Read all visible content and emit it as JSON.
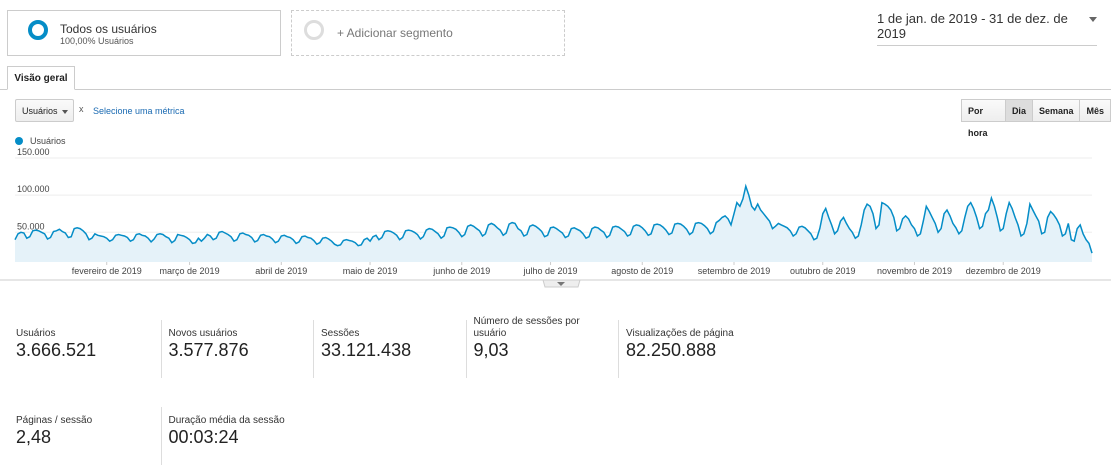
{
  "segments": {
    "active": {
      "name": "Todos os usuários",
      "detail": "100,00% Usuários"
    },
    "add": "+ Adicionar segmento"
  },
  "date_range": "1 de jan. de 2019 - 31 de dez. de 2019",
  "tab": "Visão geral",
  "controls": {
    "metric": "Usuários",
    "remove": "x",
    "secondary": "Selecione uma métrica",
    "intervals": [
      "Por hora",
      "Dia",
      "Semana",
      "Mês"
    ],
    "active_interval": 1
  },
  "chart_data": {
    "type": "line",
    "series": [
      {
        "name": "Usuários",
        "color": "#058dc7",
        "values": [
          40000,
          48000,
          50000,
          49000,
          42000,
          44000,
          52000,
          53000,
          52000,
          50000,
          48000,
          41000,
          43000,
          51000,
          52000,
          54000,
          51000,
          49000,
          43000,
          44000,
          55000,
          56000,
          55000,
          52000,
          48000,
          40000,
          42000,
          48000,
          46000,
          45000,
          44000,
          42000,
          38000,
          40000,
          46000,
          47000,
          46000,
          45000,
          43000,
          38000,
          40000,
          47000,
          48000,
          46000,
          45000,
          42000,
          37000,
          41000,
          47000,
          48000,
          47000,
          44000,
          42000,
          36000,
          39000,
          47000,
          46000,
          45000,
          43000,
          40000,
          35000,
          36000,
          42000,
          38000,
          42000,
          47000,
          45000,
          40000,
          42000,
          50000,
          51000,
          49000,
          47000,
          44000,
          38000,
          40000,
          48000,
          49000,
          47000,
          46000,
          43000,
          37000,
          39000,
          46000,
          47000,
          45000,
          44000,
          41000,
          36000,
          38000,
          45000,
          46000,
          44000,
          43000,
          40000,
          35000,
          37000,
          44000,
          45000,
          43000,
          42000,
          39000,
          34000,
          36000,
          42000,
          43000,
          41000,
          38000,
          34000,
          32000,
          33000,
          39000,
          40000,
          39000,
          38000,
          36000,
          32000,
          33000,
          40000,
          42000,
          38000,
          44000,
          46000,
          40000,
          43000,
          51000,
          52000,
          51000,
          49000,
          46000,
          40000,
          43000,
          52000,
          53000,
          52000,
          50000,
          47000,
          41000,
          44000,
          53000,
          55000,
          54000,
          51000,
          48000,
          42000,
          45000,
          56000,
          57000,
          56000,
          54000,
          50000,
          44000,
          47000,
          58000,
          60000,
          58000,
          55000,
          52000,
          45000,
          48000,
          60000,
          62000,
          60000,
          56000,
          53000,
          46000,
          49000,
          61000,
          63000,
          62000,
          55000,
          52000,
          45000,
          47000,
          58000,
          60000,
          58000,
          55000,
          51000,
          44000,
          46000,
          56000,
          57000,
          55000,
          52000,
          49000,
          43000,
          45000,
          55000,
          56000,
          54000,
          52000,
          48000,
          42000,
          44000,
          55000,
          57000,
          56000,
          53000,
          50000,
          43000,
          46000,
          57000,
          58000,
          57000,
          54000,
          51000,
          45000,
          47000,
          58000,
          60000,
          59000,
          56000,
          52000,
          46000,
          48000,
          60000,
          61000,
          60000,
          57000,
          53000,
          47000,
          49000,
          61000,
          62000,
          61000,
          58000,
          54000,
          47000,
          50000,
          62000,
          63000,
          62000,
          59000,
          55000,
          48000,
          51000,
          63000,
          66000,
          70000,
          72000,
          68000,
          60000,
          75000,
          90000,
          85000,
          95000,
          112000,
          100000,
          85000,
          80000,
          88000,
          80000,
          75000,
          70000,
          65000,
          55000,
          58000,
          62000,
          60000,
          58000,
          56000,
          52000,
          45000,
          48000,
          57000,
          58000,
          56000,
          52000,
          48000,
          40000,
          42000,
          55000,
          75000,
          82000,
          70000,
          60000,
          48000,
          52000,
          65000,
          70000,
          62000,
          55000,
          50000,
          42000,
          45000,
          60000,
          80000,
          88000,
          85000,
          75000,
          55000,
          60000,
          90000,
          88000,
          85000,
          80000,
          70000,
          52000,
          55000,
          68000,
          72000,
          68000,
          60000,
          55000,
          45000,
          48000,
          65000,
          85000,
          78000,
          70000,
          62000,
          50000,
          55000,
          75000,
          80000,
          72000,
          62000,
          56000,
          48000,
          52000,
          70000,
          85000,
          90000,
          82000,
          70000,
          55000,
          58000,
          75000,
          80000,
          96000,
          85000,
          70000,
          52000,
          55000,
          75000,
          90000,
          82000,
          70000,
          60000,
          45000,
          48000,
          62000,
          88000,
          80000,
          72000,
          65000,
          48000,
          50000,
          70000,
          78000,
          74000,
          68000,
          60000,
          45000,
          48000,
          62000,
          40000,
          38000,
          55000,
          60000,
          48000,
          40000,
          35000,
          22000
        ]
      }
    ],
    "xlim": [
      0,
      364
    ],
    "xticks": [
      {
        "value": 31,
        "label": "fevereiro de 2019"
      },
      {
        "value": 59,
        "label": "março de 2019"
      },
      {
        "value": 90,
        "label": "abril de 2019"
      },
      {
        "value": 120,
        "label": "maio de 2019"
      },
      {
        "value": 151,
        "label": "junho de 2019"
      },
      {
        "value": 181,
        "label": "julho de 2019"
      },
      {
        "value": 212,
        "label": "agosto de 2019"
      },
      {
        "value": 243,
        "label": "setembro de 2019"
      },
      {
        "value": 273,
        "label": "outubro de 2019"
      },
      {
        "value": 304,
        "label": "novembro de 2019"
      },
      {
        "value": 334,
        "label": "dezembro de 2019"
      }
    ],
    "ylim": [
      10000,
      150000
    ],
    "yticks": [
      {
        "value": 50000,
        "label": "50.000"
      },
      {
        "value": 100000,
        "label": "100.000"
      },
      {
        "value": 150000,
        "label": "150.000"
      }
    ],
    "grid": true
  },
  "metrics": [
    {
      "label": "Usuários",
      "value": "3.666.521"
    },
    {
      "label": "Novos usuários",
      "value": "3.577.876"
    },
    {
      "label": "Sessões",
      "value": "33.121.438"
    },
    {
      "label": "Número de sessões por usuário",
      "value": "9,03"
    },
    {
      "label": "Visualizações de página",
      "value": "82.250.888"
    },
    {
      "label": "Páginas / sessão",
      "value": "2,48"
    },
    {
      "label": "Duração média da sessão",
      "value": "00:03:24"
    }
  ]
}
